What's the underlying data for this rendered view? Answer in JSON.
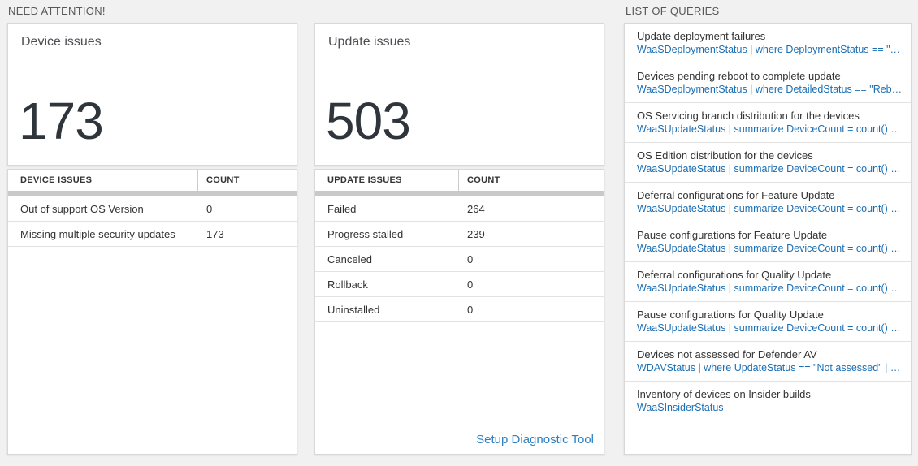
{
  "sections": {
    "need_attention": "NEED ATTENTION!",
    "list_of_queries": "LIST OF QUERIES"
  },
  "colors": {
    "background": "#f1f1f1",
    "query_link_blue": "#1b6eb4",
    "setup_link_blue": "#2e80c3",
    "big_number": "#2f353b",
    "header_bar_gray": "#c9c9c9"
  },
  "device_issues": {
    "title": "Device issues",
    "count": "173",
    "table": {
      "headers": [
        "DEVICE ISSUES",
        "COUNT"
      ],
      "rows": [
        {
          "label": "Out of support OS Version",
          "count": "0"
        },
        {
          "label": "Missing multiple security updates",
          "count": "173"
        }
      ]
    }
  },
  "update_issues": {
    "title": "Update issues",
    "count": "503",
    "table": {
      "headers": [
        "UPDATE ISSUES",
        "COUNT"
      ],
      "rows": [
        {
          "label": "Failed",
          "count": "264"
        },
        {
          "label": "Progress stalled",
          "count": "239"
        },
        {
          "label": "Canceled",
          "count": "0"
        },
        {
          "label": "Rollback",
          "count": "0"
        },
        {
          "label": "Uninstalled",
          "count": "0"
        }
      ]
    },
    "link": "Setup Diagnostic Tool"
  },
  "queries": {
    "items": [
      {
        "title": "Update deployment failures",
        "query": "WaaSDeploymentStatus | where DeploymentStatus == \"Failed\" |..."
      },
      {
        "title": "Devices pending reboot to complete update",
        "query": "WaaSDeploymentStatus | where DetailedStatus == \"Reboot pend..."
      },
      {
        "title": "OS Servicing branch distribution for the devices",
        "query": "WaaSUpdateStatus | summarize DeviceCount = count() by OSSer..."
      },
      {
        "title": "OS Edition distribution for the devices",
        "query": "WaaSUpdateStatus | summarize DeviceCount = count() by OSEdit..."
      },
      {
        "title": "Deferral configurations for Feature Update",
        "query": "WaaSUpdateStatus | summarize DeviceCount = count() by Featur..."
      },
      {
        "title": "Pause configurations for Feature Update",
        "query": "WaaSUpdateStatus | summarize DeviceCount = count() by Featur..."
      },
      {
        "title": "Deferral configurations for Quality Update",
        "query": "WaaSUpdateStatus | summarize DeviceCount = count() by Qualit..."
      },
      {
        "title": "Pause configurations for Quality Update",
        "query": "WaaSUpdateStatus | summarize DeviceCount = count() by Qualit..."
      },
      {
        "title": "Devices not assessed for Defender AV",
        "query": "WDAVStatus | where UpdateStatus == \"Not assessed\" | render ta..."
      },
      {
        "title": "Inventory of devices on Insider builds",
        "query": "WaaSInsiderStatus"
      }
    ]
  }
}
